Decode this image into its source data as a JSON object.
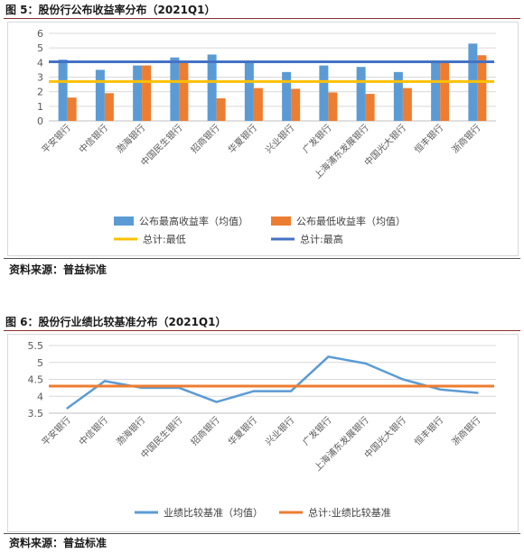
{
  "figure1": {
    "title": "图 5：股份行公布收益率分布（2021Q1）",
    "source": "资料来源：普益标准"
  },
  "figure2": {
    "title": "图 6：股份行业绩比较基准分布（2021Q1）",
    "source": "资料来源：普益标准"
  },
  "colors": {
    "blue_bar": "#5b9bd5",
    "orange_bar": "#ed7d31",
    "yellow_line": "#ffc000",
    "dark_blue_line": "#4472c4",
    "rule": "#8c2f2f"
  },
  "chart_data": [
    {
      "type": "bar",
      "categories": [
        "平安银行",
        "中信银行",
        "渤海银行",
        "中国民生银行",
        "招商银行",
        "华夏银行",
        "兴业银行",
        "广发银行",
        "上海浦东发展银行",
        "中国光大银行",
        "恒丰银行",
        "浙商银行"
      ],
      "series": [
        {
          "name": "公布最高收益率（均值）",
          "kind": "bar",
          "color": "#5b9bd5",
          "values": [
            4.2,
            3.5,
            3.8,
            4.35,
            4.55,
            4.05,
            3.35,
            3.8,
            3.7,
            3.35,
            4.15,
            5.3
          ]
        },
        {
          "name": "公布最低收益率（均值）",
          "kind": "bar",
          "color": "#ed7d31",
          "values": [
            1.6,
            1.9,
            3.8,
            4.0,
            1.55,
            2.25,
            2.2,
            1.95,
            1.85,
            2.25,
            4.05,
            4.5
          ]
        },
        {
          "name": "总计:最低",
          "kind": "hline",
          "color": "#ffc000",
          "value": 2.7
        },
        {
          "name": "总计:最高",
          "kind": "hline",
          "color": "#4472c4",
          "value": 4.05
        }
      ],
      "ylim": [
        0,
        6
      ],
      "yticks": [
        "0",
        "1",
        "2",
        "3",
        "4",
        "5",
        "6"
      ],
      "grid": true,
      "legend_position": "bottom"
    },
    {
      "type": "line",
      "categories": [
        "平安银行",
        "中信银行",
        "渤海银行",
        "中国民生银行",
        "招商银行",
        "华夏银行",
        "兴业银行",
        "广发银行",
        "上海浦东发展银行",
        "中国光大银行",
        "恒丰银行",
        "浙商银行"
      ],
      "series": [
        {
          "name": "业绩比较基准（均值）",
          "kind": "line",
          "color": "#5b9bd5",
          "values": [
            3.65,
            4.45,
            4.25,
            4.25,
            3.83,
            4.15,
            4.15,
            5.17,
            4.97,
            4.5,
            4.2,
            4.1
          ]
        },
        {
          "name": "总计:业绩比较基准",
          "kind": "hline",
          "color": "#ed7d31",
          "value": 4.3
        }
      ],
      "ylim": [
        3.5,
        5.5
      ],
      "yticks": [
        "3.5",
        "4",
        "4.5",
        "5",
        "5.5"
      ],
      "grid": true,
      "legend_position": "bottom"
    }
  ]
}
